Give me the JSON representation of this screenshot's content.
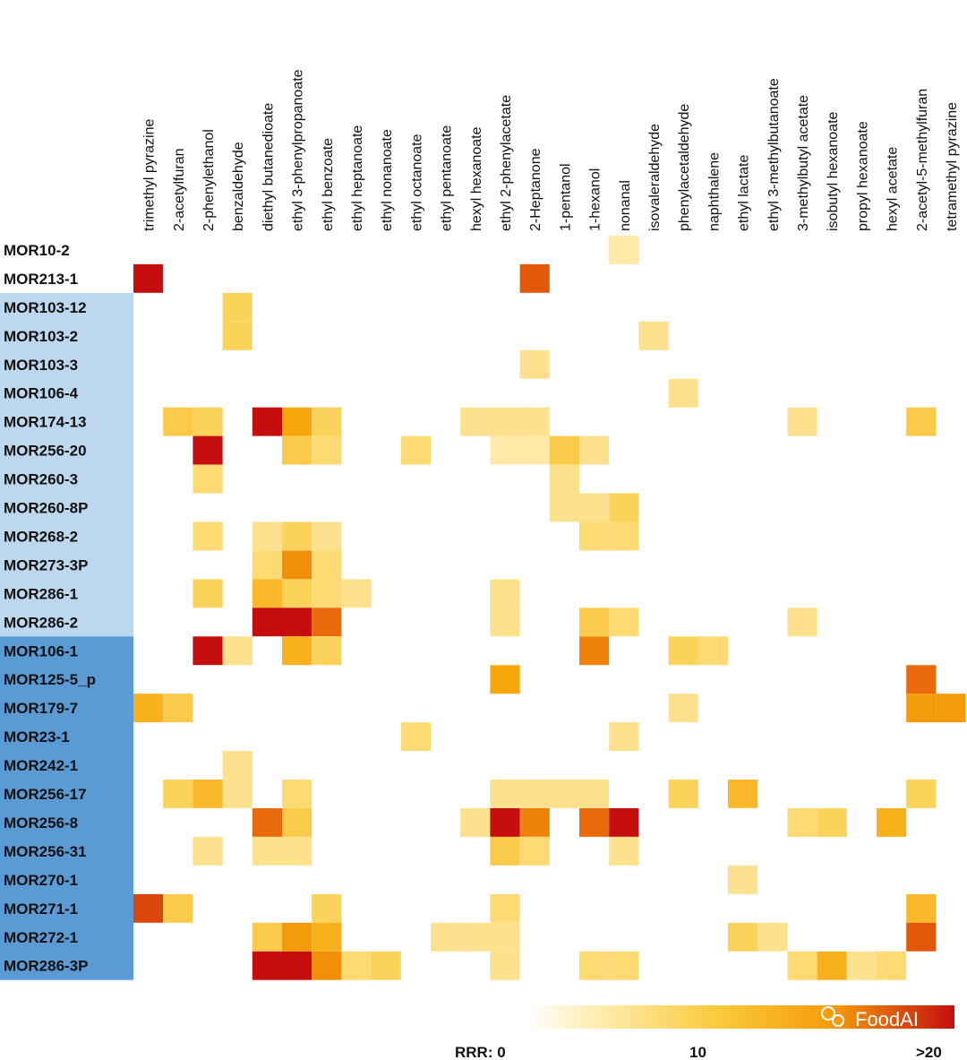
{
  "chart_data": {
    "type": "heatmap",
    "title": "",
    "columns": [
      "trimethyl pyrazine",
      "2-acetylfuran",
      "2-phenylethanol",
      "benzaldehyde",
      "diethyl butanedioate",
      "ethyl 3-phenylpropanoate",
      "ethyl benzoate",
      "ethyl heptanoate",
      "ethyl nonanoate",
      "ethyl octanoate",
      "ethyl pentanoate",
      "hexyl hexanoate",
      "ethyl 2-phenylacetate",
      "2-Heptanone",
      "1-pentanol",
      "1-hexanol",
      "nonanal",
      "isovaleraldehyde",
      "phenylacetaldehyde",
      "naphthalene",
      "ethyl lactate",
      "ethyl 3-methylbutanoate",
      "3-methylbutyl acetate",
      "isobutyl hexanoate",
      "propyl hexanoate",
      "hexyl acetate",
      "2-acetyl-5-methylfuran",
      "tetramethyl pyrazine"
    ],
    "rows": [
      "MOR10-2",
      "MOR213-1",
      "MOR103-12",
      "MOR103-2",
      "MOR103-3",
      "MOR106-4",
      "MOR174-13",
      "MOR256-20",
      "MOR260-3",
      "MOR260-8P",
      "MOR268-2",
      "MOR273-3P",
      "MOR286-1",
      "MOR286-2",
      "MOR106-1",
      "MOR125-5_p",
      "MOR179-7",
      "MOR23-1",
      "MOR242-1",
      "MOR256-17",
      "MOR256-8",
      "MOR256-31",
      "MOR270-1",
      "MOR271-1",
      "MOR272-1",
      "MOR286-3P"
    ],
    "row_groups": [
      {
        "rows": [
          0,
          1
        ],
        "color": "#ffffff"
      },
      {
        "rows": [
          2,
          13
        ],
        "color": "#bdd7ee"
      },
      {
        "rows": [
          14,
          25
        ],
        "color": "#5b9bd5"
      }
    ],
    "cells": [
      [
        0,
        16,
        2
      ],
      [
        1,
        0,
        20
      ],
      [
        1,
        13,
        16
      ],
      [
        2,
        3,
        5
      ],
      [
        3,
        3,
        5
      ],
      [
        3,
        17,
        3
      ],
      [
        4,
        13,
        3
      ],
      [
        5,
        18,
        3
      ],
      [
        6,
        1,
        6
      ],
      [
        6,
        2,
        5
      ],
      [
        6,
        4,
        20
      ],
      [
        6,
        5,
        10
      ],
      [
        6,
        6,
        5
      ],
      [
        6,
        11,
        3
      ],
      [
        6,
        12,
        3
      ],
      [
        6,
        13,
        3
      ],
      [
        6,
        22,
        3
      ],
      [
        6,
        26,
        6
      ],
      [
        7,
        2,
        20
      ],
      [
        7,
        5,
        6
      ],
      [
        7,
        6,
        4
      ],
      [
        7,
        9,
        4
      ],
      [
        7,
        12,
        2
      ],
      [
        7,
        13,
        2
      ],
      [
        7,
        14,
        6
      ],
      [
        7,
        15,
        3
      ],
      [
        8,
        2,
        4
      ],
      [
        8,
        14,
        3
      ],
      [
        9,
        14,
        3
      ],
      [
        9,
        15,
        3
      ],
      [
        9,
        16,
        5
      ],
      [
        10,
        2,
        4
      ],
      [
        10,
        4,
        3
      ],
      [
        10,
        5,
        5
      ],
      [
        10,
        6,
        3
      ],
      [
        10,
        15,
        4
      ],
      [
        10,
        16,
        4
      ],
      [
        11,
        4,
        4
      ],
      [
        11,
        5,
        12
      ],
      [
        11,
        6,
        4
      ],
      [
        12,
        2,
        5
      ],
      [
        12,
        4,
        8
      ],
      [
        12,
        5,
        5
      ],
      [
        12,
        6,
        4
      ],
      [
        12,
        7,
        3
      ],
      [
        12,
        12,
        3
      ],
      [
        13,
        4,
        20
      ],
      [
        13,
        5,
        20
      ],
      [
        13,
        6,
        15
      ],
      [
        13,
        12,
        3
      ],
      [
        13,
        15,
        6
      ],
      [
        13,
        16,
        4
      ],
      [
        13,
        22,
        3
      ],
      [
        14,
        2,
        20
      ],
      [
        14,
        3,
        3
      ],
      [
        14,
        5,
        9
      ],
      [
        14,
        6,
        5
      ],
      [
        14,
        15,
        13
      ],
      [
        14,
        18,
        5
      ],
      [
        14,
        19,
        4
      ],
      [
        15,
        12,
        10
      ],
      [
        15,
        26,
        15
      ],
      [
        16,
        0,
        9
      ],
      [
        16,
        1,
        6
      ],
      [
        16,
        18,
        3
      ],
      [
        16,
        26,
        11
      ],
      [
        16,
        27,
        11
      ],
      [
        17,
        9,
        4
      ],
      [
        17,
        16,
        3
      ],
      [
        18,
        3,
        3
      ],
      [
        19,
        1,
        5
      ],
      [
        19,
        2,
        8
      ],
      [
        19,
        3,
        3
      ],
      [
        19,
        5,
        4
      ],
      [
        19,
        12,
        3
      ],
      [
        19,
        13,
        3
      ],
      [
        19,
        14,
        3
      ],
      [
        19,
        15,
        3
      ],
      [
        19,
        18,
        5
      ],
      [
        19,
        20,
        8
      ],
      [
        19,
        26,
        5
      ],
      [
        20,
        4,
        15
      ],
      [
        20,
        5,
        6
      ],
      [
        20,
        11,
        3
      ],
      [
        20,
        12,
        20
      ],
      [
        20,
        13,
        13
      ],
      [
        20,
        15,
        15
      ],
      [
        20,
        16,
        20
      ],
      [
        20,
        22,
        4
      ],
      [
        20,
        23,
        5
      ],
      [
        20,
        25,
        9
      ],
      [
        21,
        2,
        3
      ],
      [
        21,
        4,
        3
      ],
      [
        21,
        5,
        3
      ],
      [
        21,
        12,
        6
      ],
      [
        21,
        13,
        4
      ],
      [
        21,
        16,
        3
      ],
      [
        22,
        20,
        3
      ],
      [
        23,
        0,
        17
      ],
      [
        23,
        1,
        6
      ],
      [
        23,
        6,
        5
      ],
      [
        23,
        12,
        4
      ],
      [
        23,
        26,
        8
      ],
      [
        24,
        4,
        6
      ],
      [
        24,
        5,
        11
      ],
      [
        24,
        6,
        9
      ],
      [
        24,
        10,
        3
      ],
      [
        24,
        11,
        3
      ],
      [
        24,
        12,
        3
      ],
      [
        24,
        20,
        5
      ],
      [
        24,
        21,
        3
      ],
      [
        24,
        26,
        16
      ],
      [
        25,
        4,
        20
      ],
      [
        25,
        5,
        20
      ],
      [
        25,
        6,
        12
      ],
      [
        25,
        7,
        4
      ],
      [
        25,
        8,
        5
      ],
      [
        25,
        12,
        3
      ],
      [
        25,
        15,
        4
      ],
      [
        25,
        16,
        4
      ],
      [
        25,
        22,
        4
      ],
      [
        25,
        23,
        9
      ],
      [
        25,
        24,
        3
      ],
      [
        25,
        25,
        4
      ]
    ],
    "value_range": [
      0,
      20
    ],
    "color_scale": [
      "#fff7dc",
      "#fcd35a",
      "#f7a70c",
      "#e86a0a",
      "#c50f0f"
    ],
    "legend": {
      "label": "RRR: 0",
      "mid": "10",
      "max": ">20",
      "min_value": 0,
      "mid_value": 10,
      "max_value": 20
    }
  },
  "watermark": "FoodAI"
}
